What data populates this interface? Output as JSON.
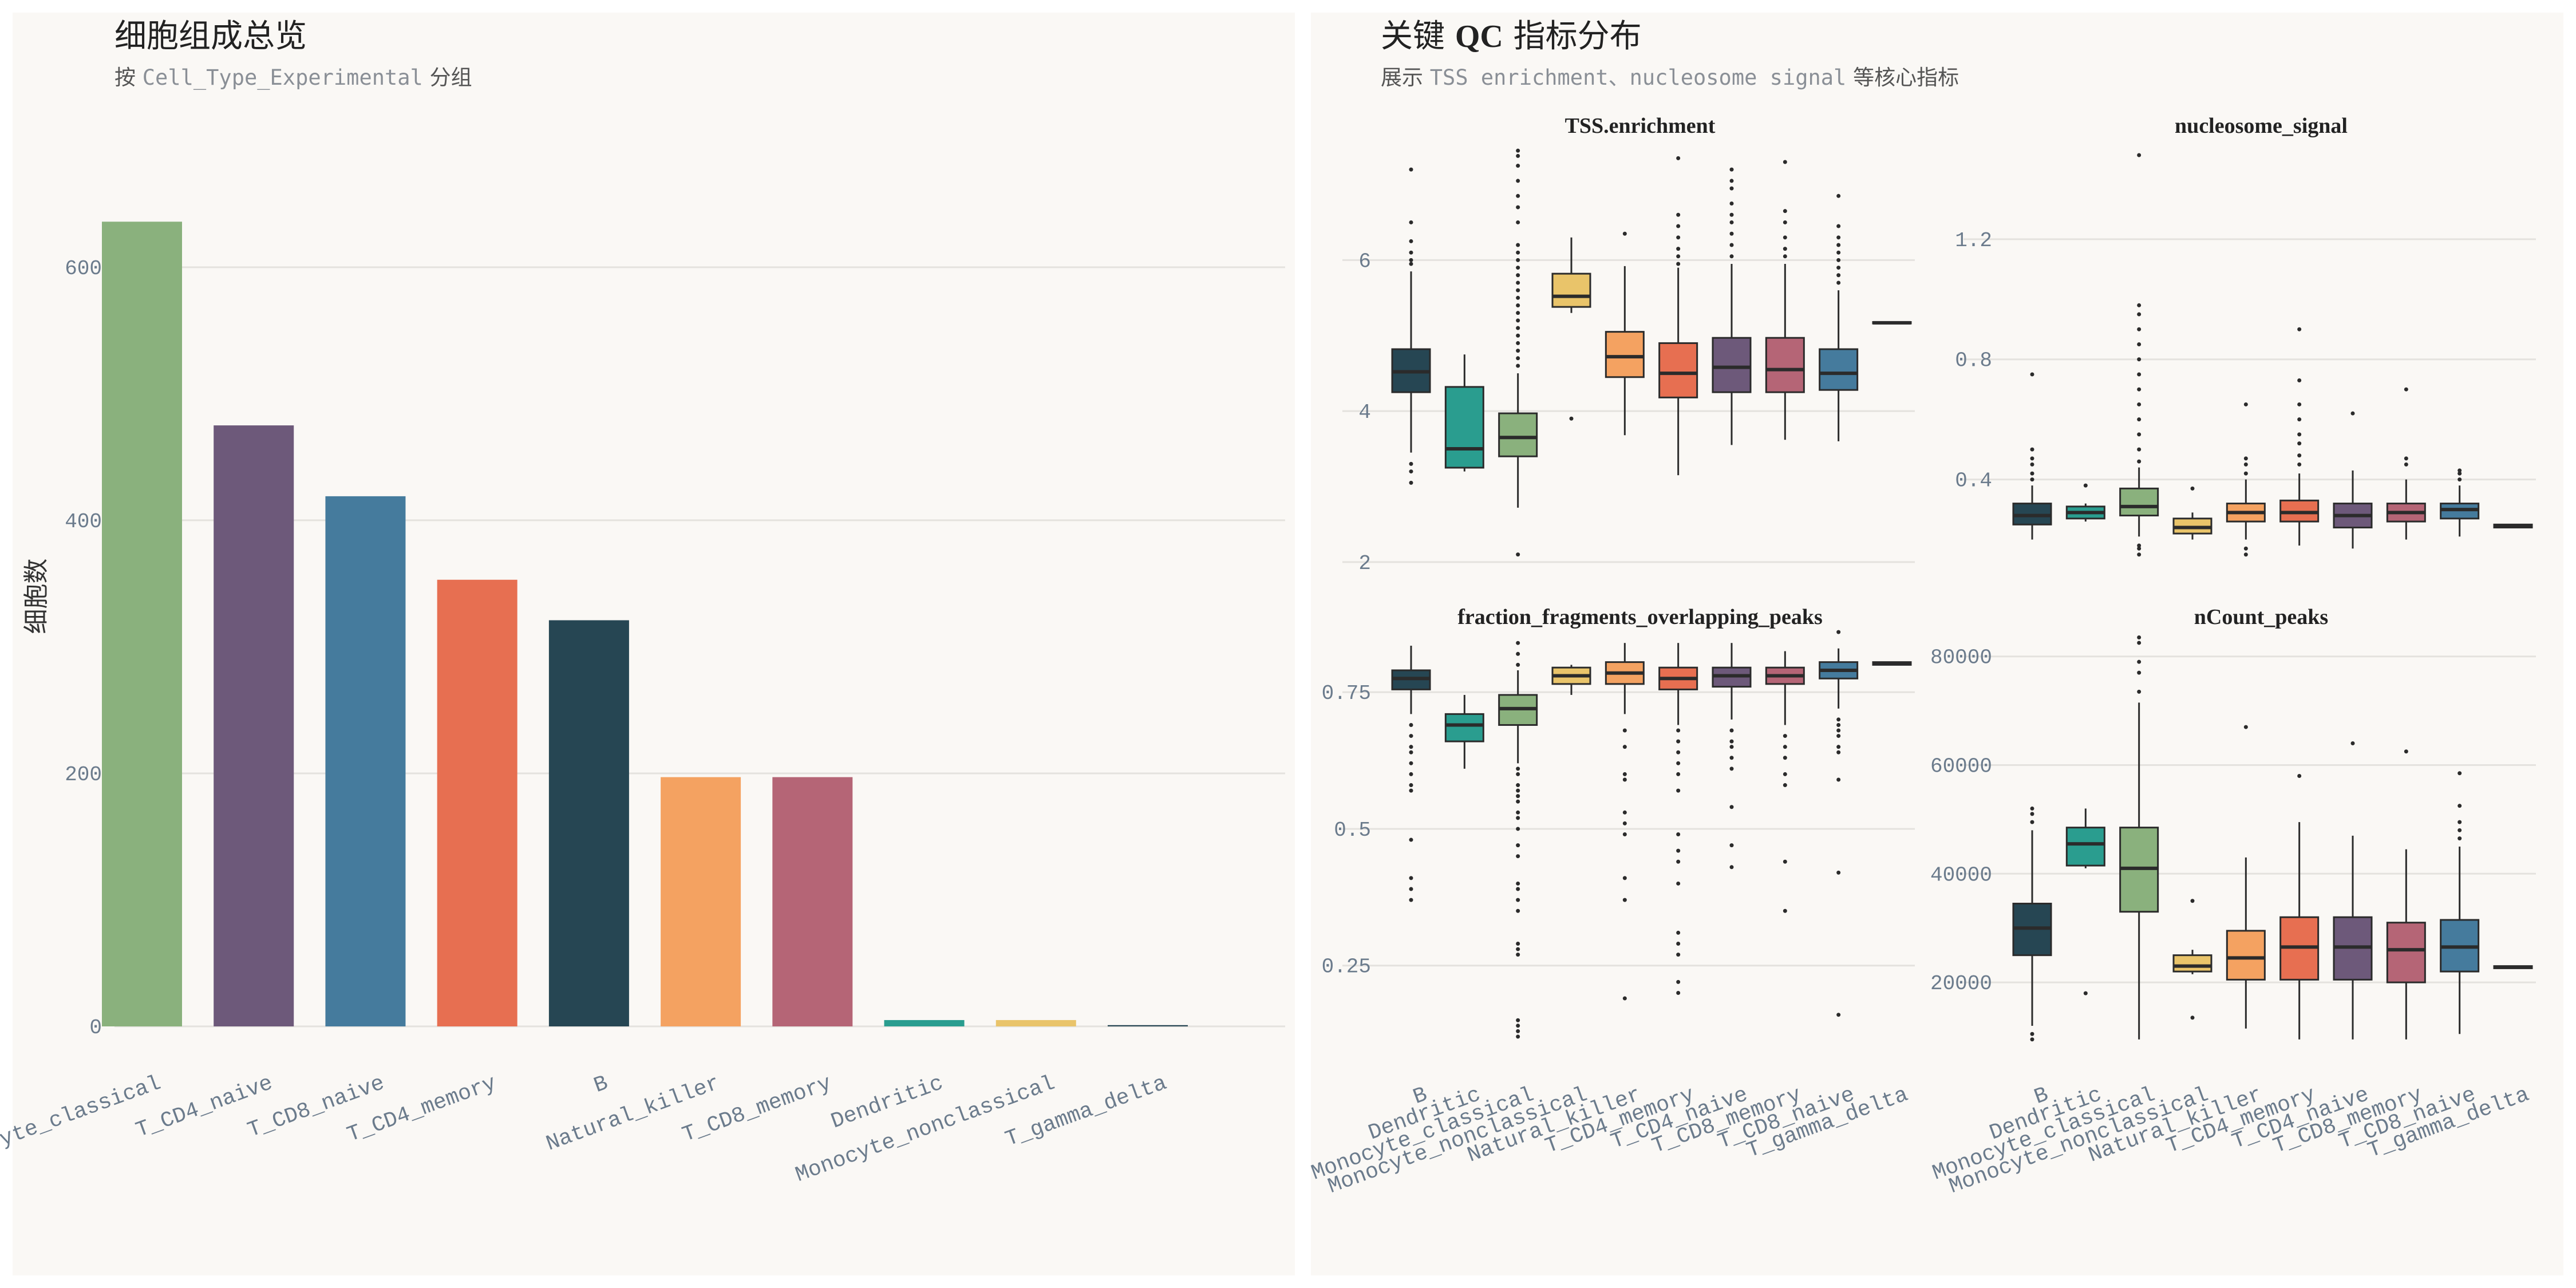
{
  "left_panel": {
    "title": "细胞组成总览",
    "subtitle_prefix": "按 ",
    "subtitle_code": "Cell_Type_Experimental",
    "subtitle_suffix": " 分组"
  },
  "right_panel": {
    "title_prefix": "关键 ",
    "title_bold": "QC",
    "title_suffix": " 指标分布",
    "subtitle_prefix": "展示 ",
    "subtitle_code": "TSS enrichment、nucleosome signal",
    "subtitle_suffix": " 等核心指标"
  },
  "colors": {
    "B": "#264653",
    "Dendritic": "#2a9d8f",
    "Monocyte_classical": "#8ab17d",
    "Monocyte_nonclassical": "#e9c46a",
    "Natural_killer": "#f4a261",
    "T_CD4_memory": "#e76f51",
    "T_CD4_naive": "#6d597a",
    "T_CD8_memory": "#b56576",
    "T_CD8_naive": "#457b9d",
    "T_gamma_delta": "#264653"
  },
  "chart_data": [
    {
      "type": "bar",
      "title": "细胞组成总览",
      "subtitle": "按 Cell_Type_Experimental 分组",
      "xlabel": "",
      "ylabel": "细胞数",
      "categories": [
        "Monocyte_classical",
        "T_CD4_naive",
        "T_CD8_naive",
        "T_CD4_memory",
        "B",
        "Natural_killer",
        "T_CD8_memory",
        "Dendritic",
        "Monocyte_nonclassical",
        "T_gamma_delta"
      ],
      "values": [
        636,
        475,
        419,
        353,
        321,
        197,
        197,
        5,
        5,
        1
      ],
      "ylim": [
        0,
        680
      ],
      "yticks": [
        0,
        200,
        400,
        600
      ],
      "grid": true
    },
    {
      "type": "box",
      "title": "TSS.enrichment",
      "categories": [
        "B",
        "Dendritic",
        "Monocyte_classical",
        "Monocyte_nonclassical",
        "Natural_killer",
        "T_CD4_memory",
        "T_CD4_naive",
        "T_CD8_memory",
        "T_CD8_naive",
        "T_gamma_delta"
      ],
      "ylim": [
        1.9,
        7.55
      ],
      "yticks": [
        2,
        4,
        6
      ],
      "boxes": [
        {
          "q1": 4.25,
          "median": 4.52,
          "q3": 4.82,
          "lo": 3.45,
          "hi": 5.85,
          "outliers": [
            3.05,
            3.2,
            3.3,
            5.95,
            6.0,
            6.1,
            6.25,
            6.5,
            7.2
          ]
        },
        {
          "q1": 3.25,
          "median": 3.5,
          "q3": 4.32,
          "lo": 3.2,
          "hi": 4.75,
          "outliers": []
        },
        {
          "q1": 3.4,
          "median": 3.65,
          "q3": 3.97,
          "lo": 2.72,
          "hi": 4.5,
          "outliers": [
            2.1,
            4.6,
            4.7,
            4.8,
            4.9,
            5.0,
            5.1,
            5.2,
            5.3,
            5.4,
            5.5,
            5.6,
            5.7,
            5.8,
            5.9,
            6.0,
            6.1,
            6.2,
            6.5,
            6.7,
            6.85,
            7.05,
            7.25,
            7.38,
            7.45
          ]
        },
        {
          "q1": 5.38,
          "median": 5.52,
          "q3": 5.82,
          "lo": 5.3,
          "hi": 6.3,
          "outliers": [
            3.9
          ]
        },
        {
          "q1": 4.45,
          "median": 4.72,
          "q3": 5.05,
          "lo": 3.68,
          "hi": 5.92,
          "outliers": [
            6.35
          ]
        },
        {
          "q1": 4.18,
          "median": 4.5,
          "q3": 4.9,
          "lo": 3.15,
          "hi": 5.9,
          "outliers": [
            5.95,
            6.05,
            6.15,
            6.3,
            6.45,
            6.6,
            7.35
          ]
        },
        {
          "q1": 4.25,
          "median": 4.58,
          "q3": 4.97,
          "lo": 3.55,
          "hi": 5.95,
          "outliers": [
            6.05,
            6.2,
            6.35,
            6.5,
            6.6,
            6.75,
            6.95,
            7.05,
            7.2
          ]
        },
        {
          "q1": 4.25,
          "median": 4.55,
          "q3": 4.97,
          "lo": 3.62,
          "hi": 5.95,
          "outliers": [
            6.05,
            6.15,
            6.3,
            6.5,
            6.65,
            7.3
          ]
        },
        {
          "q1": 4.28,
          "median": 4.5,
          "q3": 4.82,
          "lo": 3.6,
          "hi": 5.6,
          "outliers": [
            5.7,
            5.8,
            5.9,
            6.0,
            6.1,
            6.2,
            6.3,
            6.45,
            6.85
          ]
        },
        {
          "q1": 5.16,
          "median": 5.17,
          "q3": 5.18,
          "lo": 5.16,
          "hi": 5.18,
          "outliers": []
        }
      ]
    },
    {
      "type": "box",
      "title": "nucleosome_signal",
      "categories": [
        "B",
        "Dendritic",
        "Monocyte_classical",
        "Monocyte_nonclassical",
        "Natural_killer",
        "T_CD4_memory",
        "T_CD4_naive",
        "T_CD8_memory",
        "T_CD8_naive",
        "T_gamma_delta"
      ],
      "ylim": [
        0.1,
        1.52
      ],
      "yticks": [
        0.4,
        0.8,
        1.2
      ],
      "boxes": [
        {
          "q1": 0.25,
          "median": 0.28,
          "q3": 0.32,
          "lo": 0.2,
          "hi": 0.38,
          "outliers": [
            0.4,
            0.42,
            0.45,
            0.47,
            0.5,
            0.75
          ]
        },
        {
          "q1": 0.27,
          "median": 0.29,
          "q3": 0.31,
          "lo": 0.26,
          "hi": 0.32,
          "outliers": [
            0.38
          ]
        },
        {
          "q1": 0.28,
          "median": 0.31,
          "q3": 0.37,
          "lo": 0.21,
          "hi": 0.44,
          "outliers": [
            0.15,
            0.17,
            0.18,
            0.46,
            0.5,
            0.55,
            0.6,
            0.65,
            0.7,
            0.75,
            0.8,
            0.85,
            0.9,
            0.95,
            0.98,
            1.48
          ]
        },
        {
          "q1": 0.22,
          "median": 0.24,
          "q3": 0.27,
          "lo": 0.2,
          "hi": 0.29,
          "outliers": [
            0.37
          ]
        },
        {
          "q1": 0.26,
          "median": 0.29,
          "q3": 0.32,
          "lo": 0.2,
          "hi": 0.4,
          "outliers": [
            0.15,
            0.17,
            0.42,
            0.45,
            0.47,
            0.65
          ]
        },
        {
          "q1": 0.26,
          "median": 0.29,
          "q3": 0.33,
          "lo": 0.18,
          "hi": 0.42,
          "outliers": [
            0.45,
            0.48,
            0.52,
            0.55,
            0.6,
            0.65,
            0.73,
            0.9
          ]
        },
        {
          "q1": 0.24,
          "median": 0.28,
          "q3": 0.32,
          "lo": 0.17,
          "hi": 0.43,
          "outliers": [
            0.62
          ]
        },
        {
          "q1": 0.26,
          "median": 0.29,
          "q3": 0.32,
          "lo": 0.2,
          "hi": 0.4,
          "outliers": [
            0.45,
            0.47,
            0.7
          ]
        },
        {
          "q1": 0.27,
          "median": 0.3,
          "q3": 0.32,
          "lo": 0.21,
          "hi": 0.38,
          "outliers": [
            0.4,
            0.42,
            0.43
          ]
        },
        {
          "q1": 0.24,
          "median": 0.245,
          "q3": 0.25,
          "lo": 0.24,
          "hi": 0.25,
          "outliers": []
        }
      ]
    },
    {
      "type": "box",
      "title": "fraction_fragments_overlapping_peaks",
      "categories": [
        "B",
        "Dendritic",
        "Monocyte_classical",
        "Monocyte_nonclassical",
        "Natural_killer",
        "T_CD4_memory",
        "T_CD4_naive",
        "T_CD8_memory",
        "T_CD8_naive",
        "T_gamma_delta"
      ],
      "ylim": [
        0.1,
        0.88
      ],
      "yticks": [
        0.25,
        0.5,
        0.75
      ],
      "boxes": [
        {
          "q1": 0.755,
          "median": 0.775,
          "q3": 0.79,
          "lo": 0.71,
          "hi": 0.835,
          "outliers": [
            0.37,
            0.39,
            0.41,
            0.48,
            0.57,
            0.58,
            0.6,
            0.62,
            0.64,
            0.65,
            0.67,
            0.69
          ]
        },
        {
          "q1": 0.66,
          "median": 0.69,
          "q3": 0.71,
          "lo": 0.61,
          "hi": 0.745,
          "outliers": []
        },
        {
          "q1": 0.69,
          "median": 0.72,
          "q3": 0.745,
          "lo": 0.62,
          "hi": 0.79,
          "outliers": [
            0.12,
            0.13,
            0.14,
            0.15,
            0.27,
            0.28,
            0.29,
            0.35,
            0.37,
            0.39,
            0.4,
            0.45,
            0.47,
            0.5,
            0.52,
            0.53,
            0.55,
            0.56,
            0.57,
            0.58,
            0.6,
            0.61,
            0.8,
            0.82,
            0.84
          ]
        },
        {
          "q1": 0.765,
          "median": 0.78,
          "q3": 0.795,
          "lo": 0.745,
          "hi": 0.8,
          "outliers": []
        },
        {
          "q1": 0.765,
          "median": 0.785,
          "q3": 0.805,
          "lo": 0.71,
          "hi": 0.84,
          "outliers": [
            0.19,
            0.37,
            0.41,
            0.49,
            0.51,
            0.53,
            0.59,
            0.6,
            0.65,
            0.68
          ]
        },
        {
          "q1": 0.755,
          "median": 0.775,
          "q3": 0.795,
          "lo": 0.69,
          "hi": 0.84,
          "outliers": [
            0.2,
            0.22,
            0.27,
            0.29,
            0.31,
            0.4,
            0.44,
            0.46,
            0.49,
            0.57,
            0.6,
            0.62,
            0.64,
            0.66,
            0.68
          ]
        },
        {
          "q1": 0.76,
          "median": 0.78,
          "q3": 0.795,
          "lo": 0.7,
          "hi": 0.84,
          "outliers": [
            0.43,
            0.47,
            0.54,
            0.61,
            0.63,
            0.65,
            0.66,
            0.68
          ]
        },
        {
          "q1": 0.765,
          "median": 0.78,
          "q3": 0.795,
          "lo": 0.69,
          "hi": 0.825,
          "outliers": [
            0.35,
            0.44,
            0.58,
            0.6,
            0.63,
            0.65,
            0.67
          ]
        },
        {
          "q1": 0.775,
          "median": 0.79,
          "q3": 0.805,
          "lo": 0.72,
          "hi": 0.83,
          "outliers": [
            0.16,
            0.42,
            0.59,
            0.64,
            0.65,
            0.67,
            0.68,
            0.69,
            0.7,
            0.86
          ]
        },
        {
          "q1": 0.8,
          "median": 0.802,
          "q3": 0.805,
          "lo": 0.8,
          "hi": 0.805,
          "outliers": []
        }
      ]
    },
    {
      "type": "box",
      "title": "nCount_peaks",
      "categories": [
        "B",
        "Dendritic",
        "Monocyte_classical",
        "Monocyte_nonclassical",
        "Natural_killer",
        "T_CD4_memory",
        "T_CD4_naive",
        "T_CD8_memory",
        "T_CD8_naive",
        "T_gamma_delta"
      ],
      "ylim": [
        8000,
        86500
      ],
      "yticks": [
        20000,
        40000,
        60000,
        80000
      ],
      "boxes": [
        {
          "q1": 25000,
          "median": 30000,
          "q3": 34500,
          "lo": 12000,
          "hi": 48000,
          "outliers": [
            9500,
            10500,
            49500,
            51000,
            52000
          ]
        },
        {
          "q1": 41500,
          "median": 45500,
          "q3": 48500,
          "lo": 41000,
          "hi": 52000,
          "outliers": [
            18000
          ]
        },
        {
          "q1": 33000,
          "median": 41000,
          "q3": 48500,
          "lo": 9500,
          "hi": 71500,
          "outliers": [
            73500,
            77000,
            79000,
            82500,
            83500
          ]
        },
        {
          "q1": 22000,
          "median": 23000,
          "q3": 25000,
          "lo": 21500,
          "hi": 26000,
          "outliers": [
            13500,
            35000
          ]
        },
        {
          "q1": 20500,
          "median": 24500,
          "q3": 29500,
          "lo": 11500,
          "hi": 43000,
          "outliers": [
            67000
          ]
        },
        {
          "q1": 20500,
          "median": 26500,
          "q3": 32000,
          "lo": 9500,
          "hi": 49500,
          "outliers": [
            58000
          ]
        },
        {
          "q1": 20500,
          "median": 26500,
          "q3": 32000,
          "lo": 9500,
          "hi": 47000,
          "outliers": [
            64000
          ]
        },
        {
          "q1": 20000,
          "median": 26000,
          "q3": 31000,
          "lo": 9500,
          "hi": 44500,
          "outliers": [
            62500
          ]
        },
        {
          "q1": 22000,
          "median": 26500,
          "q3": 31500,
          "lo": 10500,
          "hi": 45000,
          "outliers": [
            46500,
            48000,
            49500,
            52500,
            58500
          ]
        },
        {
          "q1": 22600,
          "median": 22800,
          "q3": 23000,
          "lo": 22600,
          "hi": 23000,
          "outliers": []
        }
      ]
    }
  ]
}
